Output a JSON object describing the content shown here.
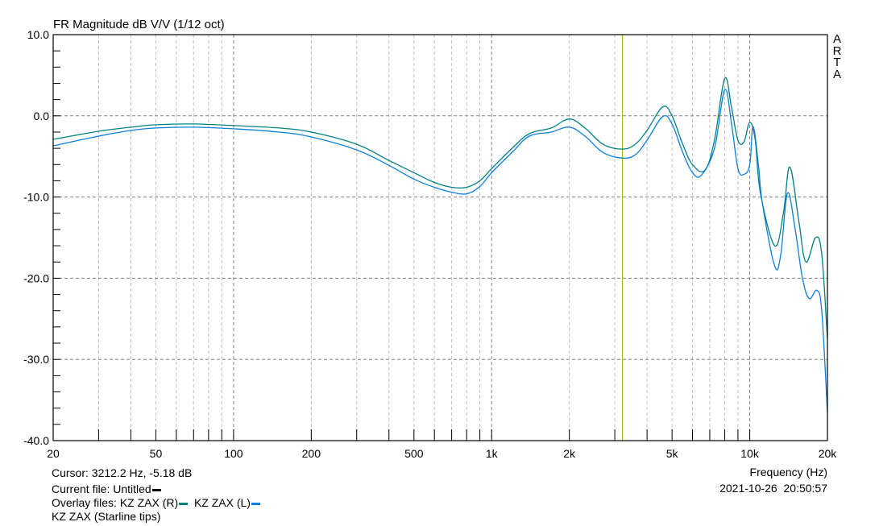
{
  "chart_data": {
    "type": "line",
    "title": "FR Magnitude dB V/V (1/12 oct)",
    "xlabel": "Frequency (Hz)",
    "ylabel": "",
    "xscale": "log",
    "xlim": [
      20,
      20000
    ],
    "ylim": [
      -40,
      10
    ],
    "grid": true,
    "x_tick_labels": [
      "20",
      "50",
      "100",
      "200",
      "500",
      "1k",
      "2k",
      "5k",
      "10k",
      "20k"
    ],
    "x_tick_values": [
      20,
      50,
      100,
      200,
      500,
      1000,
      2000,
      5000,
      10000,
      20000
    ],
    "y_tick_labels": [
      "10.0",
      "0.0",
      "-10.0",
      "-20.0",
      "-30.0",
      "-40.0"
    ],
    "y_tick_values": [
      10,
      0,
      -10,
      -20,
      -30,
      -40
    ],
    "cursor": {
      "frequency_hz": 3212.2,
      "value_db": -5.18,
      "color": "#b8b800"
    },
    "series": [
      {
        "name": "KZ ZAX (R)",
        "color": "#008080",
        "x": [
          20,
          30,
          40,
          50,
          70,
          100,
          150,
          200,
          300,
          400,
          500,
          600,
          700,
          800,
          900,
          1000,
          1200,
          1400,
          1700,
          2000,
          2300,
          2700,
          3200,
          3600,
          4000,
          4600,
          5000,
          5500,
          6000,
          6700,
          7300,
          8000,
          8500,
          9000,
          9500,
          10000,
          10500,
          11000,
          12500,
          13500,
          14300,
          15500,
          16500,
          18000,
          19000,
          20000
        ],
        "values": [
          -2.9,
          -1.9,
          -1.4,
          -1.1,
          -1.0,
          -1.2,
          -1.5,
          -2.0,
          -3.5,
          -5.5,
          -7.0,
          -8.2,
          -8.8,
          -8.8,
          -8.0,
          -6.5,
          -4.0,
          -2.2,
          -1.5,
          -0.4,
          -1.5,
          -3.5,
          -4.1,
          -3.5,
          -1.8,
          1.1,
          0.0,
          -3.5,
          -6.0,
          -6.7,
          -3.0,
          4.6,
          1.0,
          -3.0,
          -3.2,
          -0.8,
          -3.0,
          -9.5,
          -16.0,
          -12.0,
          -6.3,
          -13.0,
          -18.0,
          -15.0,
          -17.0,
          -27.5
        ]
      },
      {
        "name": "KZ ZAX (L)",
        "color": "#0a7fe0",
        "x": [
          20,
          30,
          40,
          50,
          70,
          100,
          150,
          200,
          300,
          400,
          500,
          600,
          700,
          800,
          900,
          1000,
          1200,
          1400,
          1700,
          2000,
          2300,
          2700,
          3200,
          3600,
          4000,
          4600,
          5000,
          5500,
          6000,
          6500,
          7300,
          8000,
          8500,
          9000,
          9500,
          10000,
          10300,
          10800,
          11200,
          12500,
          13200,
          14000,
          15000,
          16000,
          17000,
          18200,
          19000,
          20000
        ],
        "values": [
          -3.7,
          -2.5,
          -1.8,
          -1.5,
          -1.4,
          -1.6,
          -2.0,
          -2.6,
          -4.2,
          -6.1,
          -7.8,
          -8.8,
          -9.4,
          -9.6,
          -8.7,
          -7.0,
          -4.5,
          -2.5,
          -2.0,
          -1.4,
          -2.5,
          -4.5,
          -5.2,
          -4.8,
          -3.0,
          -0.1,
          -1.0,
          -4.5,
          -7.0,
          -7.3,
          -4.0,
          3.2,
          -1.0,
          -6.5,
          -7.2,
          -6.0,
          -1.3,
          -6.0,
          -10.8,
          -18.5,
          -17.0,
          -9.5,
          -14.0,
          -20.0,
          -22.5,
          -21.5,
          -24.0,
          -36.5
        ]
      }
    ]
  },
  "header": {
    "title": "FR Magnitude dB V/V (1/12 oct)"
  },
  "watermark": {
    "letters": [
      "A",
      "R",
      "T",
      "A"
    ]
  },
  "footer": {
    "cursor_text": "Cursor: 3212.2 Hz, -5.18 dB",
    "current_file_text": "Current file: Untitled",
    "current_file_color": "#000000",
    "overlay_label": "Overlay files:",
    "overlay_files": [
      {
        "name": "KZ ZAX (R)",
        "color": "#008080"
      },
      {
        "name": "KZ ZAX (L)",
        "color": "#0a7fe0"
      }
    ],
    "overlay_extra": "KZ ZAX (Starline tips)",
    "xaxis_label": "Frequency (Hz)",
    "timestamp": "2021-10-26  20:50:57"
  }
}
